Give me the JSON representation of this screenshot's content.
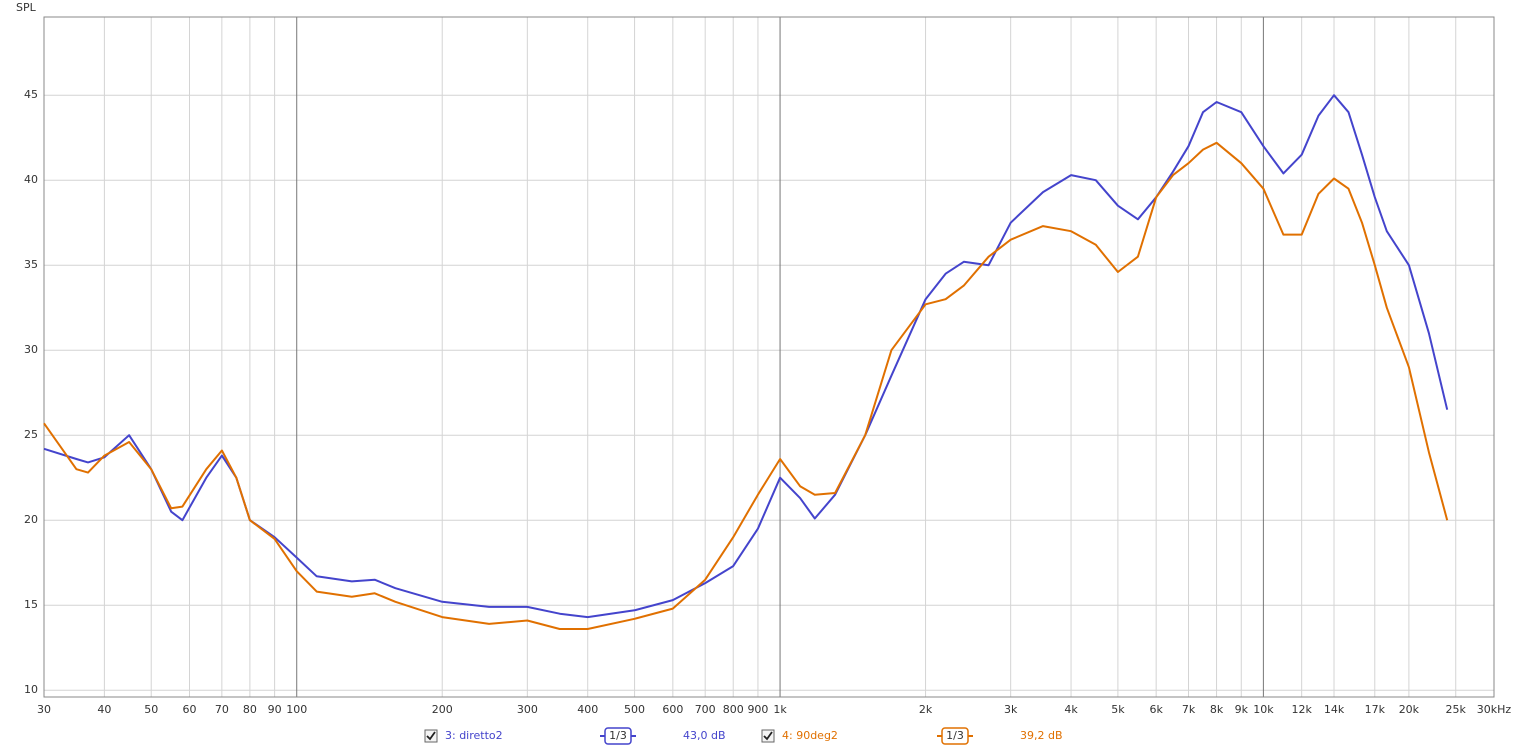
{
  "chart_data": {
    "type": "line",
    "y_label": "SPL",
    "xscale": "log",
    "grid": true,
    "xlim": [
      30,
      30000
    ],
    "ylim": [
      9.6,
      49.6
    ],
    "yticks": [
      10,
      15,
      20,
      25,
      30,
      35,
      40,
      45
    ],
    "xticks": [
      30,
      40,
      50,
      60,
      70,
      80,
      90,
      100,
      200,
      300,
      400,
      500,
      600,
      700,
      800,
      900,
      {
        "value": 1000,
        "label": "1k"
      },
      {
        "value": 2000,
        "label": "2k"
      },
      {
        "value": 3000,
        "label": "3k"
      },
      {
        "value": 4000,
        "label": "4k"
      },
      {
        "value": 5000,
        "label": "5k"
      },
      {
        "value": 6000,
        "label": "6k"
      },
      {
        "value": 7000,
        "label": "7k"
      },
      {
        "value": 8000,
        "label": "8k"
      },
      {
        "value": 9000,
        "label": "9k"
      },
      {
        "value": 10000,
        "label": "10k"
      },
      {
        "value": 12000,
        "label": "12k"
      },
      {
        "value": 14000,
        "label": "14k"
      },
      {
        "value": 17000,
        "label": "17k"
      },
      {
        "value": 20000,
        "label": "20k"
      },
      {
        "value": 25000,
        "label": "25k"
      },
      {
        "value": 30000,
        "label": "30kHz"
      }
    ],
    "x": [
      30,
      35,
      37,
      40,
      45,
      50,
      55,
      58,
      65,
      70,
      75,
      80,
      90,
      100,
      110,
      130,
      145,
      160,
      200,
      250,
      300,
      350,
      400,
      500,
      600,
      700,
      800,
      900,
      1000,
      1100,
      1180,
      1300,
      1500,
      1700,
      2000,
      2200,
      2400,
      2700,
      3000,
      3500,
      4000,
      4500,
      5000,
      5500,
      6000,
      6500,
      7000,
      7500,
      8000,
      9000,
      10000,
      11000,
      12000,
      13000,
      14000,
      15000,
      16000,
      17000,
      18000,
      20000,
      22000,
      24000
    ],
    "series": [
      {
        "name": "3: diretto2",
        "color": "#4444cc",
        "smoothing": "1/3",
        "level": "43,0 dB",
        "values": [
          24.2,
          23.6,
          23.4,
          23.7,
          25.0,
          23.0,
          20.5,
          20.0,
          22.5,
          23.8,
          22.5,
          20.0,
          19.0,
          17.8,
          16.7,
          16.4,
          16.5,
          16.0,
          15.2,
          14.9,
          14.9,
          14.5,
          14.3,
          14.7,
          15.3,
          16.3,
          17.3,
          19.5,
          22.5,
          21.3,
          20.1,
          21.5,
          25.0,
          28.5,
          33.0,
          34.5,
          35.2,
          35.0,
          37.5,
          39.3,
          40.3,
          40.0,
          38.5,
          37.7,
          39.0,
          40.5,
          42.0,
          44.0,
          44.6,
          44.0,
          42.0,
          40.4,
          41.5,
          43.8,
          45.0,
          44.0,
          41.5,
          39.0,
          37.0,
          35.0,
          31.0,
          26.5
        ]
      },
      {
        "name": "4: 90deg2",
        "color": "#e07000",
        "smoothing": "1/3",
        "level": "39,2 dB",
        "values": [
          25.7,
          23.0,
          22.8,
          23.8,
          24.6,
          23.0,
          20.7,
          20.8,
          23.0,
          24.1,
          22.5,
          20.0,
          18.9,
          17.0,
          15.8,
          15.5,
          15.7,
          15.2,
          14.3,
          13.9,
          14.1,
          13.6,
          13.6,
          14.2,
          14.8,
          16.5,
          19.0,
          21.5,
          23.6,
          22.0,
          21.5,
          21.6,
          25.0,
          30.0,
          32.7,
          33.0,
          33.8,
          35.5,
          36.5,
          37.3,
          37.0,
          36.2,
          34.6,
          35.5,
          39.0,
          40.3,
          41.0,
          41.8,
          42.2,
          41.0,
          39.5,
          36.8,
          36.8,
          39.2,
          40.1,
          39.5,
          37.5,
          35.0,
          32.5,
          29.0,
          24.0,
          20.0
        ]
      }
    ]
  }
}
